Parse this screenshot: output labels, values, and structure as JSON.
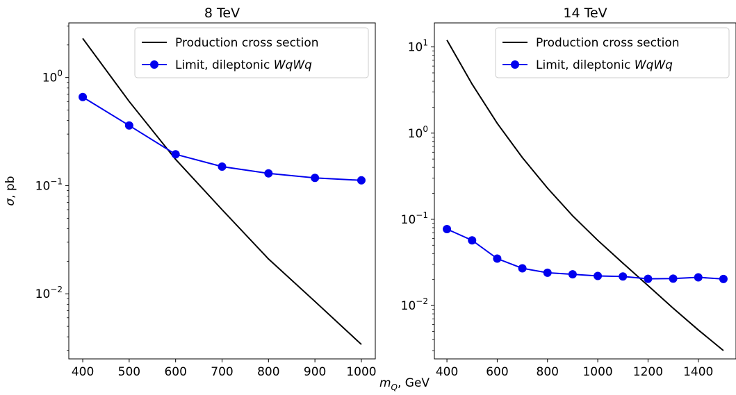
{
  "chart_data": [
    {
      "type": "line",
      "title": "8 TeV",
      "xlabel": "m_Q, GeV",
      "ylabel": "σ, pb",
      "yscale": "log",
      "xlim": [
        370,
        1030
      ],
      "ylim": [
        0.0025,
        3.2
      ],
      "xticks": [
        400,
        500,
        600,
        700,
        800,
        900,
        1000
      ],
      "yticks": [
        {
          "value": 1,
          "base": "10",
          "exp": "0"
        },
        {
          "value": 0.1,
          "base": "10",
          "exp": "−1"
        },
        {
          "value": 0.01,
          "base": "10",
          "exp": "−2"
        }
      ],
      "legend_position": "top-right",
      "series": [
        {
          "name": "Production cross section",
          "color": "#000000",
          "marker": "none",
          "x": [
            400,
            500,
            600,
            700,
            800,
            900,
            1000
          ],
          "y": [
            2.3,
            0.6,
            0.175,
            0.06,
            0.021,
            0.0085,
            0.0034
          ]
        },
        {
          "name": "Limit, dileptonic WqWq",
          "name_parts": {
            "text": "Limit, dileptonic ",
            "italic": "WqWq"
          },
          "color": "#0000ee",
          "marker": "circle",
          "x": [
            400,
            500,
            600,
            700,
            800,
            900,
            1000
          ],
          "y": [
            0.66,
            0.36,
            0.195,
            0.15,
            0.13,
            0.118,
            0.112
          ]
        }
      ]
    },
    {
      "type": "line",
      "title": "14 TeV",
      "xlabel": "",
      "ylabel": "",
      "yscale": "log",
      "xlim": [
        350,
        1550
      ],
      "ylim": [
        0.0024,
        19
      ],
      "xticks": [
        400,
        600,
        800,
        1000,
        1200,
        1400
      ],
      "yticks": [
        {
          "value": 10,
          "base": "10",
          "exp": "1"
        },
        {
          "value": 1,
          "base": "10",
          "exp": "0"
        },
        {
          "value": 0.1,
          "base": "10",
          "exp": "−1"
        },
        {
          "value": 0.01,
          "base": "10",
          "exp": "−2"
        }
      ],
      "legend_position": "top-right",
      "series": [
        {
          "name": "Production cross section",
          "color": "#000000",
          "marker": "none",
          "x": [
            400,
            500,
            600,
            700,
            800,
            900,
            1000,
            1100,
            1200,
            1300,
            1400,
            1500
          ],
          "y": [
            12,
            3.7,
            1.3,
            0.52,
            0.23,
            0.11,
            0.057,
            0.031,
            0.017,
            0.0093,
            0.0052,
            0.003
          ]
        },
        {
          "name": "Limit, dileptonic WqWq",
          "name_parts": {
            "text": "Limit, dileptonic ",
            "italic": "WqWq"
          },
          "color": "#0000ee",
          "marker": "circle",
          "x": [
            400,
            500,
            600,
            700,
            800,
            900,
            1000,
            1100,
            1200,
            1300,
            1400,
            1500
          ],
          "y": [
            0.077,
            0.057,
            0.035,
            0.027,
            0.024,
            0.023,
            0.022,
            0.0217,
            0.0204,
            0.0205,
            0.0212,
            0.0203
          ]
        }
      ]
    }
  ]
}
